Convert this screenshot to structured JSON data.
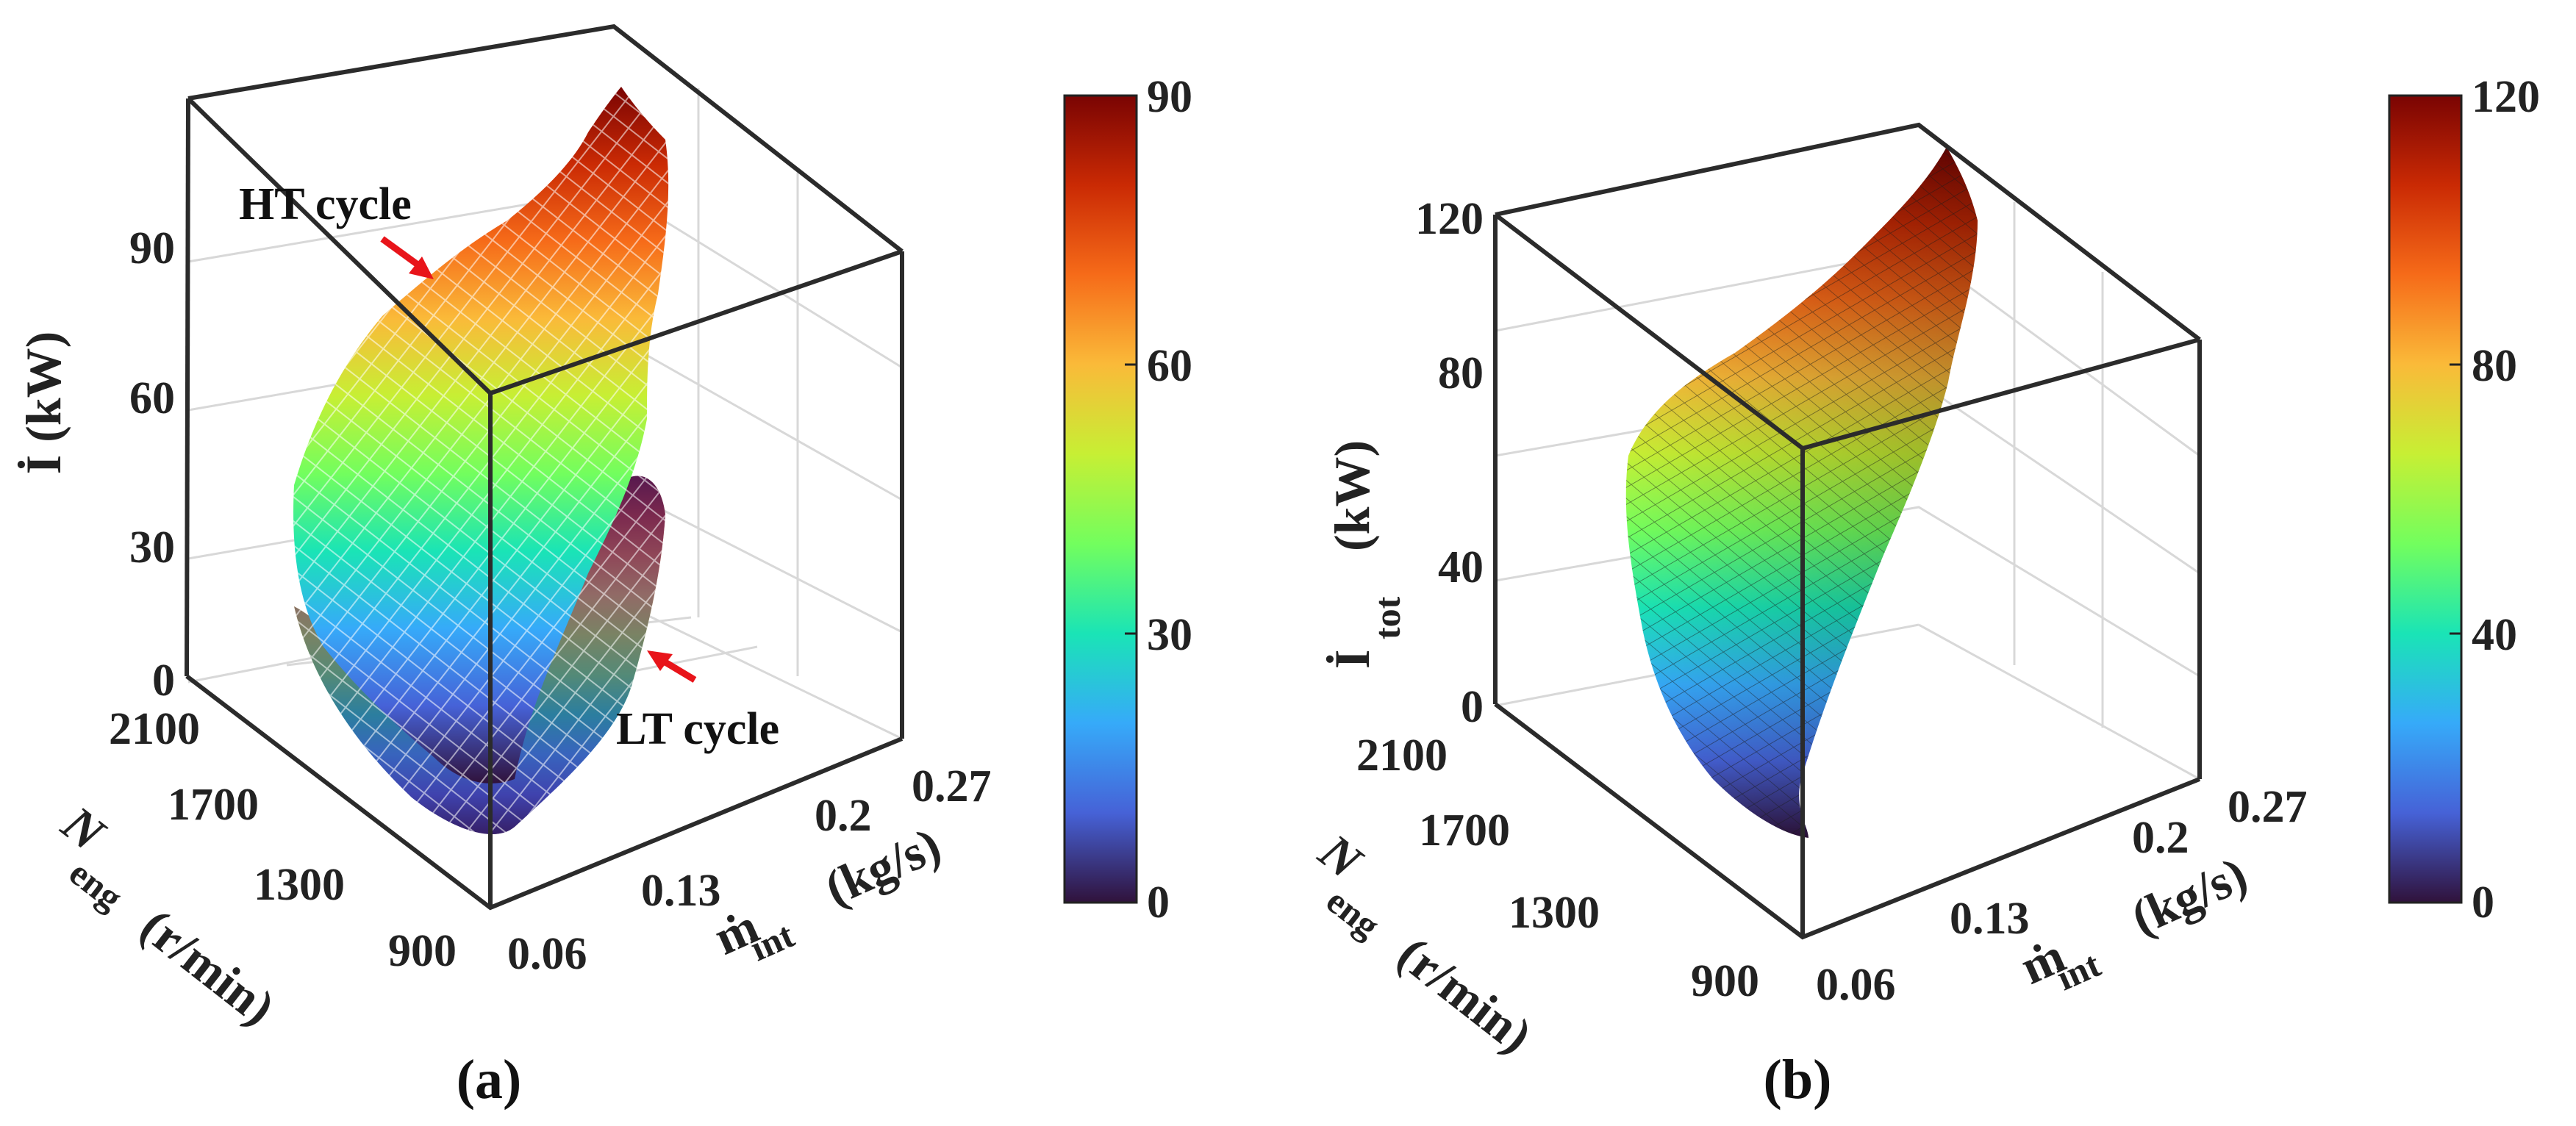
{
  "figure": {
    "panels": [
      {
        "caption": "(a)",
        "z_label": "İ (kW)",
        "z_ticks": [
          "0",
          "30",
          "60",
          "90"
        ],
        "n_label": "N",
        "n_sub": "eng",
        "n_unit": "(r/min)",
        "n_ticks": [
          "900",
          "1300",
          "1700",
          "2100"
        ],
        "m_label": "ṁ",
        "m_sub": "int",
        "m_unit": "(kg/s)",
        "m_ticks": [
          "0.06",
          "0.13",
          "0.2",
          "0.27"
        ],
        "colorbar_ticks": [
          "0",
          "30",
          "60",
          "90"
        ],
        "annotations": {
          "ht": "HT cycle",
          "lt": "LT cycle"
        }
      },
      {
        "caption": "(b)",
        "z_label": "İ",
        "z_sub": "tot",
        "z_unit": "(kW)",
        "z_ticks": [
          "0",
          "40",
          "80",
          "120"
        ],
        "n_label": "N",
        "n_sub": "eng",
        "n_unit": "(r/min)",
        "n_ticks": [
          "900",
          "1300",
          "1700",
          "2100"
        ],
        "m_label": "ṁ",
        "m_sub": "int",
        "m_unit": "(kg/s)",
        "m_ticks": [
          "0.06",
          "0.13",
          "0.2",
          "0.27"
        ],
        "colorbar_ticks": [
          "0",
          "40",
          "80",
          "120"
        ]
      }
    ],
    "colormap_stops": [
      "#30123b",
      "#4662d7",
      "#36aaf9",
      "#1ae4b6",
      "#72fe5e",
      "#c7ef34",
      "#faba39",
      "#f66b19",
      "#ca2a04",
      "#7a0403"
    ],
    "arrow_color": "#e8141a"
  },
  "chart_data": [
    {
      "type": "surface3d",
      "title": "(a)",
      "series": [
        {
          "name": "HT cycle",
          "style": "mesh",
          "z_range_kW": [
            18,
            88
          ],
          "z_min_at": {
            "N_eng": 900,
            "m_int": 0.06
          },
          "z_max_at": {
            "N_eng": 2100,
            "m_int": 0.27
          }
        },
        {
          "name": "LT cycle",
          "style": "mesh",
          "z_range_kW": [
            3,
            48
          ],
          "z_min_at": {
            "N_eng": 900,
            "m_int": 0.06
          },
          "z_max_at": {
            "N_eng": 2100,
            "m_int": 0.27
          }
        }
      ],
      "x_label": "N_eng (r/min)",
      "x_ticks": [
        900,
        1300,
        1700,
        2100
      ],
      "y_label": "ṁ_int (kg/s)",
      "y_ticks": [
        0.06,
        0.13,
        0.2,
        0.27
      ],
      "z_label": "İ (kW)",
      "z_ticks": [
        0,
        30,
        60,
        90
      ],
      "zlim": [
        0,
        100
      ],
      "colorbar_range": [
        0,
        90
      ],
      "colormap": "turbo"
    },
    {
      "type": "surface3d",
      "title": "(b)",
      "series": [
        {
          "name": "Total",
          "style": "faceted",
          "z_range_kW": [
            20,
            130
          ],
          "z_min_at": {
            "N_eng": 900,
            "m_int": 0.06
          },
          "z_max_at": {
            "N_eng": 2100,
            "m_int": 0.27
          }
        }
      ],
      "x_label": "N_eng (r/min)",
      "x_ticks": [
        900,
        1300,
        1700,
        2100
      ],
      "y_label": "ṁ_int (kg/s)",
      "y_ticks": [
        0.06,
        0.13,
        0.2,
        0.27
      ],
      "z_label": "İ_tot (kW)",
      "z_ticks": [
        0,
        40,
        80,
        120
      ],
      "zlim": [
        0,
        130
      ],
      "colorbar_range": [
        0,
        120
      ],
      "colormap": "turbo"
    }
  ]
}
